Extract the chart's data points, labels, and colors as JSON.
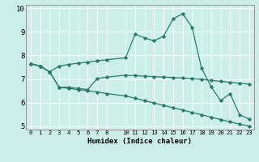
{
  "xlabel": "Humidex (Indice chaleur)",
  "bg_color": "#cceee8",
  "line_color": "#2a7a6a",
  "grid_color": "#ffffff",
  "xlim": [
    -0.5,
    23.5
  ],
  "ylim": [
    4.85,
    10.15
  ],
  "xticks": [
    0,
    1,
    2,
    3,
    4,
    5,
    6,
    7,
    8,
    10,
    11,
    12,
    13,
    14,
    15,
    16,
    17,
    18,
    19,
    20,
    21,
    22,
    23
  ],
  "yticks": [
    5,
    6,
    7,
    8,
    9,
    10
  ],
  "line1_x": [
    0,
    1,
    2,
    3,
    4,
    5,
    6,
    7,
    8,
    10,
    11,
    12,
    13,
    14,
    15,
    16,
    17,
    18,
    19,
    20,
    21,
    22,
    23
  ],
  "line1_y": [
    7.65,
    7.55,
    7.3,
    7.55,
    7.62,
    7.67,
    7.72,
    7.77,
    7.82,
    7.9,
    8.9,
    8.75,
    8.62,
    8.82,
    9.55,
    9.78,
    9.2,
    7.45,
    6.68,
    6.08,
    6.38,
    5.48,
    5.3
  ],
  "line2_x": [
    0,
    1,
    2,
    3,
    4,
    5,
    6,
    7,
    8,
    10,
    11,
    12,
    13,
    14,
    15,
    16,
    17,
    18,
    19,
    20,
    21,
    22,
    23
  ],
  "line2_y": [
    7.65,
    7.55,
    7.3,
    6.65,
    6.65,
    6.6,
    6.55,
    7.02,
    7.08,
    7.16,
    7.14,
    7.12,
    7.1,
    7.08,
    7.06,
    7.04,
    7.02,
    6.98,
    6.94,
    6.9,
    6.86,
    6.82,
    6.78
  ],
  "line3_x": [
    0,
    1,
    2,
    3,
    4,
    5,
    6,
    7,
    8,
    10,
    11,
    12,
    13,
    14,
    15,
    16,
    17,
    18,
    19,
    20,
    21,
    22,
    23
  ],
  "line3_y": [
    7.65,
    7.55,
    7.3,
    6.65,
    6.6,
    6.55,
    6.5,
    6.45,
    6.38,
    6.28,
    6.18,
    6.08,
    5.98,
    5.88,
    5.78,
    5.68,
    5.58,
    5.48,
    5.38,
    5.28,
    5.18,
    5.08,
    5.0
  ]
}
